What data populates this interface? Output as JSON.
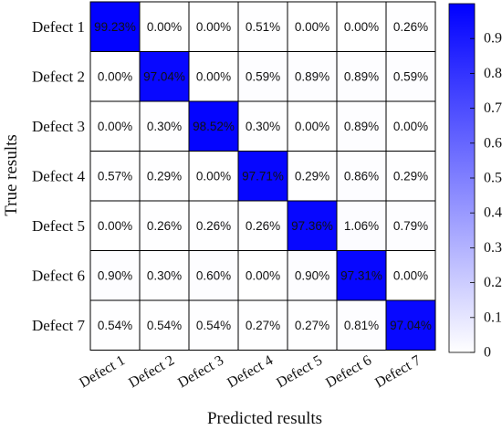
{
  "chart_data": {
    "type": "heatmap",
    "xlabel": "Predicted results",
    "ylabel": "True results",
    "x_categories": [
      "Defect 1",
      "Defect 2",
      "Defect 3",
      "Defect 4",
      "Defect 5",
      "Defect 6",
      "Defect 7"
    ],
    "y_categories": [
      "Defect 1",
      "Defect 2",
      "Defect 3",
      "Defect 4",
      "Defect 5",
      "Defect 6",
      "Defect 7"
    ],
    "values": [
      [
        99.23,
        0.0,
        0.0,
        0.51,
        0.0,
        0.0,
        0.26
      ],
      [
        0.0,
        97.04,
        0.0,
        0.59,
        0.89,
        0.89,
        0.59
      ],
      [
        0.0,
        0.3,
        98.52,
        0.3,
        0.0,
        0.89,
        0.0
      ],
      [
        0.57,
        0.29,
        0.0,
        97.71,
        0.29,
        0.86,
        0.29
      ],
      [
        0.0,
        0.26,
        0.26,
        0.26,
        97.36,
        1.06,
        0.79
      ],
      [
        0.9,
        0.3,
        0.6,
        0.0,
        0.9,
        97.31,
        0.0
      ],
      [
        0.54,
        0.54,
        0.54,
        0.27,
        0.27,
        0.81,
        97.04
      ]
    ],
    "value_suffix": "%",
    "colorbar": {
      "range": [
        0,
        1
      ],
      "ticks": [
        0,
        0.1,
        0.2,
        0.3,
        0.4,
        0.5,
        0.6,
        0.7,
        0.8,
        0.9
      ],
      "tick_labels": [
        "0",
        "0.1",
        "0.2",
        "0.3",
        "0.4",
        "0.5",
        "0.6",
        "0.7",
        "0.8",
        "0.9"
      ],
      "color_low": "#ffffff",
      "color_high": "#0000ff"
    },
    "grid": true
  }
}
